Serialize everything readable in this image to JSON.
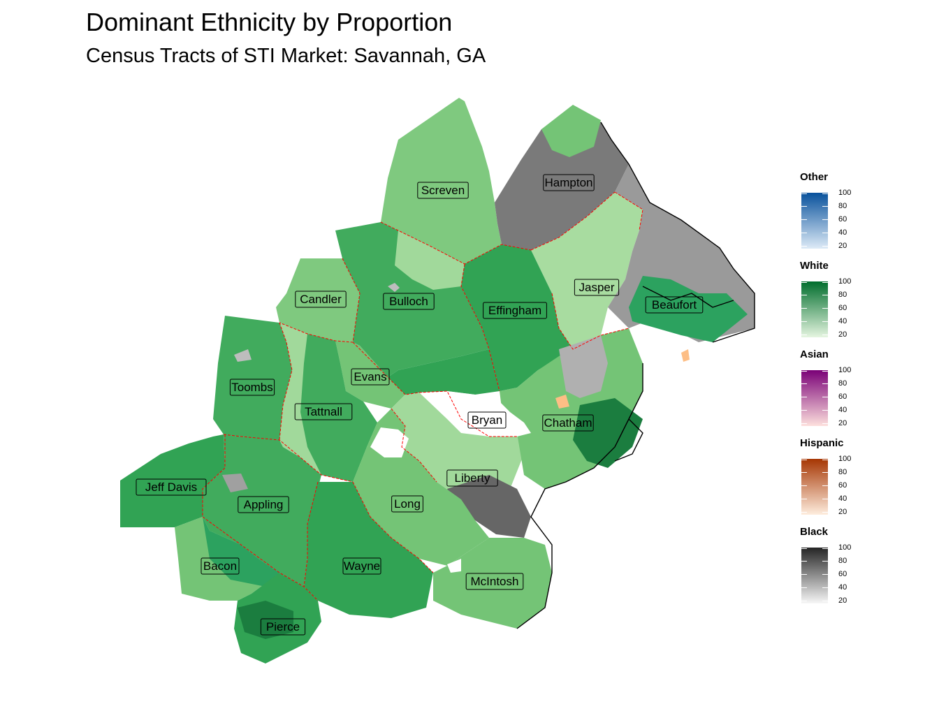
{
  "title": "Dominant Ethnicity by Proportion",
  "subtitle": "Census Tracts of STI Market: Savannah, GA",
  "counties": [
    "Screven",
    "Hampton",
    "Jasper",
    "Beaufort",
    "Candler",
    "Bulloch",
    "Effingham",
    "Evans",
    "Toombs",
    "Tattnall",
    "Bryan",
    "Chatham",
    "Liberty",
    "Long",
    "Jeff Davis",
    "Appling",
    "Bacon",
    "Wayne",
    "McIntosh",
    "Pierce"
  ],
  "legend": [
    {
      "title": "Other",
      "color_high": "#08519c",
      "color_low": "#deebf7",
      "ticks": [
        "100",
        "80",
        "60",
        "40",
        "20"
      ]
    },
    {
      "title": "White",
      "color_high": "#006d2c",
      "color_low": "#e5f5e0",
      "ticks": [
        "100",
        "80",
        "60",
        "40",
        "20"
      ]
    },
    {
      "title": "Asian",
      "color_high": "#7a0177",
      "color_low": "#fde0dd",
      "ticks": [
        "100",
        "80",
        "60",
        "40",
        "20"
      ]
    },
    {
      "title": "Hispanic",
      "color_high": "#a63603",
      "color_low": "#feedde",
      "ticks": [
        "100",
        "80",
        "60",
        "40",
        "20"
      ]
    },
    {
      "title": "Black",
      "color_high": "#252525",
      "color_low": "#f7f7f7",
      "ticks": [
        "100",
        "80",
        "60",
        "40",
        "20"
      ]
    }
  ]
}
